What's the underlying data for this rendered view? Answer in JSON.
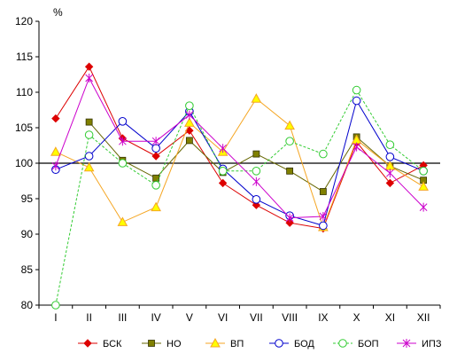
{
  "chart_data": {
    "type": "line",
    "unit": "%",
    "categories": [
      "I",
      "II",
      "III",
      "IV",
      "V",
      "VI",
      "VII",
      "VIII",
      "IX",
      "X",
      "XI",
      "XII"
    ],
    "ylim": [
      80,
      120
    ],
    "yticks": [
      80,
      85,
      90,
      95,
      100,
      105,
      110,
      115,
      120
    ],
    "reference_line": 100,
    "grid": false,
    "legend_position": "bottom",
    "series": [
      {
        "name": "БСК",
        "color": "#dd0000",
        "marker": "diamond",
        "dash": "solid",
        "values": [
          106.3,
          113.6,
          103.5,
          101.0,
          104.6,
          97.2,
          94.1,
          91.6,
          90.8,
          103.0,
          97.2,
          99.7
        ]
      },
      {
        "name": "НО",
        "color": "#666600",
        "marker": "square",
        "dash": "solid",
        "values": [
          null,
          105.8,
          100.4,
          97.9,
          103.2,
          98.7,
          101.3,
          98.9,
          96.0,
          103.7,
          99.6,
          97.6
        ]
      },
      {
        "name": "ВП",
        "color": "#f5a623",
        "marker": "triangle",
        "dash": "solid",
        "values": [
          101.6,
          99.4,
          91.7,
          93.8,
          105.7,
          101.6,
          109.1,
          105.3,
          91.0,
          103.3,
          99.6,
          96.7
        ]
      },
      {
        "name": "БОД",
        "color": "#0000cc",
        "marker": "circle",
        "dash": "solid",
        "values": [
          99.1,
          101.0,
          105.9,
          102.1,
          107.3,
          99.2,
          94.9,
          92.6,
          91.2,
          108.8,
          100.9,
          98.9
        ]
      },
      {
        "name": "БОП",
        "color": "#33cc33",
        "marker": "circle",
        "dash": "dashed",
        "values": [
          80.0,
          104.0,
          100.0,
          96.9,
          108.1,
          98.9,
          98.9,
          103.1,
          101.3,
          110.3,
          102.6,
          98.9
        ]
      },
      {
        "name": "ИПЗ",
        "color": "#cc00cc",
        "marker": "star",
        "dash": "solid",
        "values": [
          99.6,
          112.0,
          103.1,
          103.1,
          106.8,
          102.1,
          97.4,
          92.3,
          92.5,
          102.3,
          98.6,
          93.8
        ]
      }
    ]
  }
}
